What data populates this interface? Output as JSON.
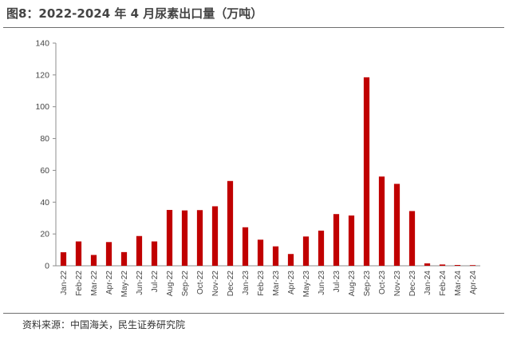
{
  "title": "图8：2022-2024 年 4 月尿素出口量（万吨）",
  "source": "资料来源：中国海关，民生证券研究院",
  "colors": {
    "bar": "#c00000",
    "axis": "#8c8c8c"
  },
  "chart_data": {
    "type": "bar",
    "categories": [
      "Jan-22",
      "Feb-22",
      "Mar-22",
      "Apr-22",
      "May-22",
      "Jun-22",
      "Jul-22",
      "Aug-22",
      "Sep-22",
      "Oct-22",
      "Nov-22",
      "Dec-22",
      "Jan-23",
      "Feb-23",
      "Mar-23",
      "Apr-23",
      "May-23",
      "Jun-23",
      "Jul-23",
      "Aug-23",
      "Sep-23",
      "Oct-23",
      "Nov-23",
      "Dec-23",
      "Jan-24",
      "Feb-24",
      "Mar-24",
      "Apr-24"
    ],
    "values": [
      8.5,
      15.3,
      6.8,
      14.9,
      8.6,
      18.7,
      15.3,
      35.1,
      34.8,
      35.0,
      37.4,
      53.3,
      24.2,
      16.4,
      12.2,
      7.4,
      18.4,
      22.1,
      32.5,
      31.6,
      118.5,
      56.1,
      51.5,
      34.4,
      1.5,
      0.8,
      0.5,
      0.4
    ],
    "yticks": [
      "0",
      "20",
      "40",
      "60",
      "80",
      "100",
      "120",
      "140"
    ],
    "ylim": [
      0,
      140
    ],
    "grid": false,
    "legend": "none"
  }
}
